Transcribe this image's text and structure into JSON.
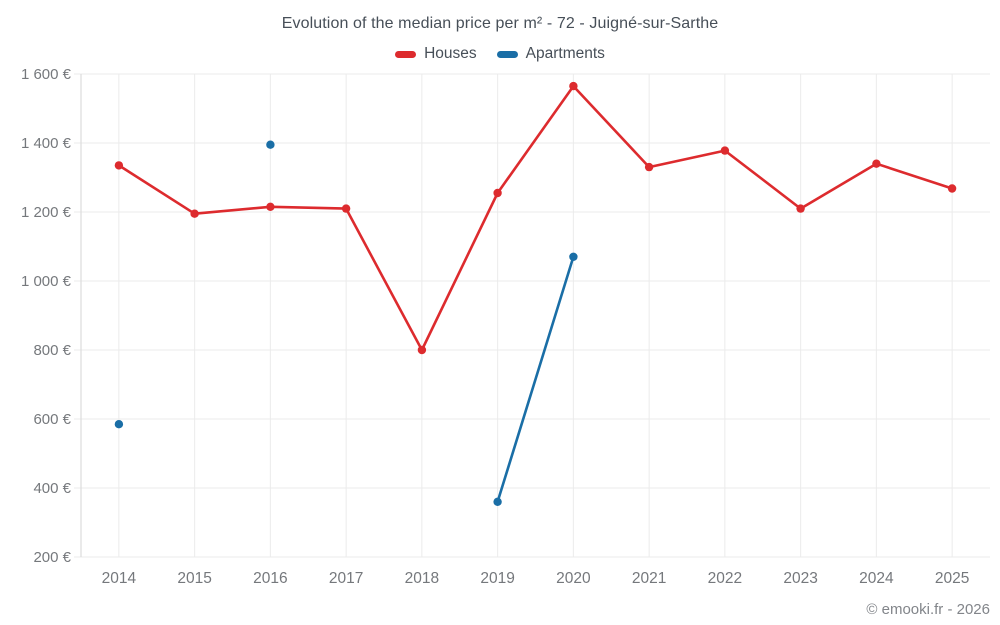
{
  "chart_data": {
    "type": "line",
    "title": "Evolution of the median price per m² - 72 - Juigné-sur-Sarthe",
    "categories": [
      "2014",
      "2015",
      "2016",
      "2017",
      "2018",
      "2019",
      "2020",
      "2021",
      "2022",
      "2023",
      "2024",
      "2025"
    ],
    "series": [
      {
        "name": "Houses",
        "color": "#dd2b2e",
        "values": [
          1335,
          1195,
          1215,
          1210,
          800,
          1255,
          1565,
          1330,
          1378,
          1210,
          1340,
          1268
        ]
      },
      {
        "name": "Apartments",
        "color": "#1a6ea6",
        "values": [
          585,
          null,
          1395,
          null,
          null,
          360,
          1070,
          null,
          null,
          null,
          null,
          null
        ]
      }
    ],
    "ylim": [
      200,
      1600
    ],
    "y_ticks": [
      {
        "value": 200,
        "label": "200 €"
      },
      {
        "value": 400,
        "label": "400 €"
      },
      {
        "value": 600,
        "label": "600 €"
      },
      {
        "value": 800,
        "label": "800 €"
      },
      {
        "value": 1000,
        "label": "1 000 €"
      },
      {
        "value": 1200,
        "label": "1 200 €"
      },
      {
        "value": 1400,
        "label": "1 400 €"
      },
      {
        "value": 1600,
        "label": "1 600 €"
      }
    ],
    "grid": true,
    "legend_position": "top"
  },
  "footer": {
    "copyright": "© emooki.fr - 2026"
  },
  "colors": {
    "grid": "#ebebeb",
    "axis": "#d6d6d6",
    "tick_text": "#75787c",
    "title_text": "#474f58"
  }
}
